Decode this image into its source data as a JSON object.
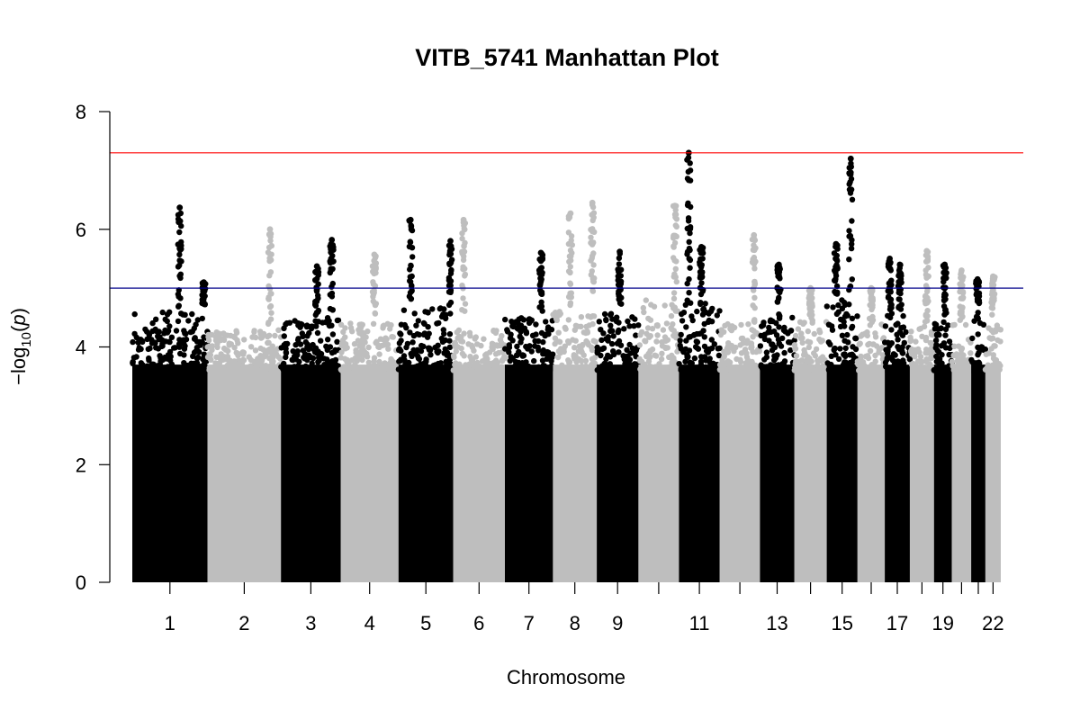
{
  "chart_data": {
    "type": "scatter",
    "subtype": "manhattan",
    "title": "VITB_5741 Manhattan Plot",
    "xlabel": "Chromosome",
    "ylabel": "-log10(p)",
    "ylabel_parts": {
      "prefix": "−log",
      "sub": "10",
      "open": "(",
      "p": "p",
      "close": ")"
    },
    "ylim": [
      0,
      8
    ],
    "yticks": [
      0,
      2,
      4,
      6,
      8
    ],
    "colors": {
      "odd": "#000000",
      "even": "#bebebe",
      "genomewide_line": "#ff0000",
      "suggestive_line": "#00008b"
    },
    "genomewide_line": 7.3,
    "suggestive_line": 5.0,
    "chromosomes": [
      {
        "chr": 1,
        "label": "1",
        "length": 249,
        "base_max": 4.6,
        "peaks": [
          {
            "pos": 0.63,
            "height": 6.37
          },
          {
            "pos": 0.95,
            "height": 5.1
          }
        ]
      },
      {
        "chr": 2,
        "label": "2",
        "length": 243,
        "base_max": 4.3,
        "peaks": [
          {
            "pos": 0.85,
            "height": 6.0
          }
        ]
      },
      {
        "chr": 3,
        "label": "3",
        "length": 198,
        "base_max": 4.5,
        "peaks": [
          {
            "pos": 0.85,
            "height": 5.82
          },
          {
            "pos": 0.6,
            "height": 5.37
          }
        ]
      },
      {
        "chr": 4,
        "label": "4",
        "length": 191,
        "base_max": 4.4,
        "peaks": [
          {
            "pos": 0.58,
            "height": 5.57
          }
        ]
      },
      {
        "chr": 5,
        "label": "5",
        "length": 181,
        "base_max": 4.7,
        "peaks": [
          {
            "pos": 0.22,
            "height": 6.16
          },
          {
            "pos": 0.95,
            "height": 5.8
          }
        ]
      },
      {
        "chr": 6,
        "label": "6",
        "length": 171,
        "base_max": 4.3,
        "peaks": [
          {
            "pos": 0.2,
            "height": 6.16
          }
        ]
      },
      {
        "chr": 7,
        "label": "7",
        "length": 159,
        "base_max": 4.5,
        "peaks": [
          {
            "pos": 0.75,
            "height": 5.6
          }
        ]
      },
      {
        "chr": 8,
        "label": "8",
        "length": 145,
        "base_max": 4.6,
        "peaks": [
          {
            "pos": 0.4,
            "height": 6.27
          },
          {
            "pos": 0.9,
            "height": 6.45
          }
        ]
      },
      {
        "chr": 9,
        "label": "9",
        "length": 138,
        "base_max": 4.6,
        "peaks": [
          {
            "pos": 0.55,
            "height": 5.62
          }
        ]
      },
      {
        "chr": 10,
        "label": "",
        "length": 134,
        "base_max": 4.8,
        "peaks": [
          {
            "pos": 0.9,
            "height": 6.4
          }
        ]
      },
      {
        "chr": 11,
        "label": "11",
        "length": 135,
        "base_max": 4.8,
        "peaks": [
          {
            "pos": 0.24,
            "height": 7.3
          },
          {
            "pos": 0.55,
            "height": 5.7
          }
        ]
      },
      {
        "chr": 12,
        "label": "",
        "length": 133,
        "base_max": 4.4,
        "peaks": [
          {
            "pos": 0.85,
            "height": 5.9
          }
        ]
      },
      {
        "chr": 13,
        "label": "13",
        "length": 114,
        "base_max": 4.5,
        "peaks": [
          {
            "pos": 0.55,
            "height": 5.4
          }
        ]
      },
      {
        "chr": 14,
        "label": "",
        "length": 107,
        "base_max": 4.5,
        "peaks": [
          {
            "pos": 0.5,
            "height": 5.0
          }
        ]
      },
      {
        "chr": 15,
        "label": "15",
        "length": 102,
        "base_max": 4.8,
        "peaks": [
          {
            "pos": 0.78,
            "height": 7.2
          },
          {
            "pos": 0.3,
            "height": 5.75
          }
        ]
      },
      {
        "chr": 16,
        "label": "",
        "length": 90,
        "base_max": 4.4,
        "peaks": [
          {
            "pos": 0.5,
            "height": 5.0
          }
        ]
      },
      {
        "chr": 17,
        "label": "17",
        "length": 83,
        "base_max": 4.6,
        "peaks": [
          {
            "pos": 0.2,
            "height": 5.5
          },
          {
            "pos": 0.6,
            "height": 5.4
          }
        ]
      },
      {
        "chr": 18,
        "label": "",
        "length": 80,
        "base_max": 4.4,
        "peaks": [
          {
            "pos": 0.7,
            "height": 5.63
          }
        ]
      },
      {
        "chr": 19,
        "label": "19",
        "length": 59,
        "base_max": 4.4,
        "peaks": [
          {
            "pos": 0.6,
            "height": 5.4
          }
        ]
      },
      {
        "chr": 20,
        "label": "",
        "length": 64,
        "base_max": 4.4,
        "peaks": [
          {
            "pos": 0.5,
            "height": 5.3
          }
        ]
      },
      {
        "chr": 21,
        "label": "",
        "length": 47,
        "base_max": 4.6,
        "peaks": [
          {
            "pos": 0.45,
            "height": 5.15
          }
        ]
      },
      {
        "chr": 22,
        "label": "22",
        "length": 51,
        "base_max": 4.4,
        "peaks": [
          {
            "pos": 0.5,
            "height": 5.2
          }
        ]
      }
    ]
  }
}
